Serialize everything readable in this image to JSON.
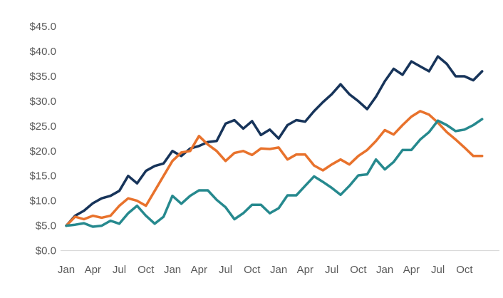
{
  "chart_data": {
    "type": "line",
    "title": "",
    "xlabel": "",
    "ylabel": "",
    "grid": false,
    "legend_position": "none",
    "ylim": [
      0,
      45
    ],
    "y_tick_step": 5,
    "y_tick_labels": [
      "$0.0",
      "$5.0",
      "$10.0",
      "$15.0",
      "$20.0",
      "$25.0",
      "$30.0",
      "$35.0",
      "$40.0",
      "$45.0"
    ],
    "y_tick_values": [
      0,
      5,
      10,
      15,
      20,
      25,
      30,
      35,
      40,
      45
    ],
    "x_tick_labels": [
      "Jan",
      "Apr",
      "Jul",
      "Oct",
      "Jan",
      "Apr",
      "Jul",
      "Oct",
      "Jan",
      "Apr",
      "Jul",
      "Oct",
      "Jan",
      "Apr",
      "Jul",
      "Oct"
    ],
    "x_tick_month_indices": [
      0,
      3,
      6,
      9,
      12,
      15,
      18,
      21,
      24,
      27,
      30,
      33,
      36,
      39,
      42,
      45
    ],
    "months_count": 48,
    "series": [
      {
        "name": "navy-series",
        "color": "#17345A",
        "values": [
          5.0,
          7.0,
          8.0,
          9.5,
          10.5,
          11.0,
          12.0,
          15.0,
          13.5,
          16.0,
          17.0,
          17.5,
          20.0,
          19.0,
          20.5,
          21.0,
          21.8,
          22.0,
          25.5,
          26.2,
          24.5,
          26.0,
          23.2,
          24.3,
          22.5,
          25.2,
          26.2,
          25.9,
          28.0,
          29.8,
          31.4,
          33.4,
          31.4,
          30.0,
          28.4,
          30.9,
          34.0,
          36.5,
          35.3,
          38.0,
          37.0,
          36.0,
          39.0,
          37.5,
          35.0,
          35.0,
          34.2,
          36.0
        ]
      },
      {
        "name": "orange-series",
        "color": "#E8722C",
        "values": [
          5.0,
          6.8,
          6.3,
          7.0,
          6.6,
          7.0,
          9.0,
          10.5,
          10.0,
          9.0,
          12.0,
          15.0,
          18.0,
          19.7,
          20.0,
          23.0,
          21.3,
          20.0,
          18.0,
          19.6,
          20.0,
          19.2,
          20.5,
          20.4,
          20.7,
          18.3,
          19.3,
          19.3,
          17.1,
          16.1,
          17.3,
          18.3,
          17.3,
          19.0,
          20.2,
          22.0,
          24.2,
          23.3,
          25.2,
          26.9,
          28.0,
          27.3,
          25.7,
          23.8,
          22.3,
          20.7,
          19.0,
          19.0
        ]
      },
      {
        "name": "teal-series",
        "color": "#26898E",
        "values": [
          5.0,
          5.2,
          5.5,
          4.8,
          5.0,
          6.0,
          5.4,
          7.5,
          9.0,
          7.0,
          5.4,
          6.8,
          11.0,
          9.4,
          11.0,
          12.1,
          12.1,
          10.2,
          8.7,
          6.3,
          7.5,
          9.2,
          9.2,
          7.5,
          8.5,
          11.1,
          11.1,
          13.0,
          14.9,
          13.8,
          12.6,
          11.2,
          13.0,
          15.1,
          15.3,
          18.3,
          16.3,
          17.8,
          20.2,
          20.2,
          22.3,
          23.8,
          26.1,
          25.2,
          24.0,
          24.3,
          25.2,
          26.4
        ]
      }
    ]
  },
  "style": {
    "background_color": "#ffffff",
    "axis_label_color": "#595959",
    "axis_line_color": "#d9d9d9",
    "line_width": 3.5
  }
}
